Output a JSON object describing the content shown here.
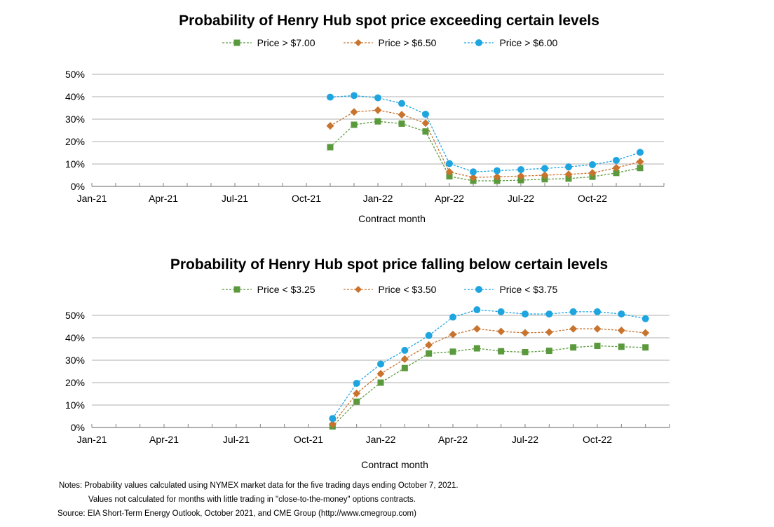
{
  "chart_data": [
    {
      "type": "line",
      "title": "Probability of Henry Hub spot price exceeding certain levels",
      "xlabel": "Contract month",
      "ylabel": "",
      "x_tick_labels": [
        "Jan-21",
        "Apr-21",
        "Jul-21",
        "Oct-21",
        "Jan-22",
        "Apr-22",
        "Jul-22",
        "Oct-22"
      ],
      "y_tick_labels": [
        "0%",
        "10%",
        "20%",
        "30%",
        "40%",
        "50%"
      ],
      "ylim": [
        0,
        50
      ],
      "grid": true,
      "legend_position": "top",
      "x": [
        "Nov-21",
        "Dec-21",
        "Jan-22",
        "Feb-22",
        "Mar-22",
        "Apr-22",
        "May-22",
        "Jun-22",
        "Jul-22",
        "Aug-22",
        "Sep-22",
        "Oct-22",
        "Nov-22",
        "Dec-22"
      ],
      "series": [
        {
          "name": "Price > $7.00",
          "color": "#5a9a3c",
          "marker": "square",
          "values": [
            17.5,
            27.5,
            29,
            28,
            24.5,
            4.5,
            2.5,
            2.5,
            2.8,
            3.2,
            3.5,
            4.3,
            6,
            8.2
          ]
        },
        {
          "name": "Price > $6.50",
          "color": "#c8732e",
          "marker": "diamond",
          "values": [
            27,
            33.2,
            34,
            32,
            28.2,
            6.5,
            4,
            4.3,
            4.6,
            5,
            5.4,
            6,
            8.3,
            11
          ]
        },
        {
          "name": "Price > $6.00",
          "color": "#1ea5e0",
          "marker": "circle",
          "values": [
            39.8,
            40.5,
            39.5,
            37,
            32.2,
            10.2,
            6.5,
            7,
            7.5,
            8,
            8.7,
            9.7,
            11.6,
            15.2
          ]
        }
      ]
    },
    {
      "type": "line",
      "title": "Probability of Henry Hub spot price falling below certain levels",
      "xlabel": "Contract month",
      "ylabel": "",
      "x_tick_labels": [
        "Jan-21",
        "Apr-21",
        "Jul-21",
        "Oct-21",
        "Jan-22",
        "Apr-22",
        "Jul-22",
        "Oct-22"
      ],
      "y_tick_labels": [
        "0%",
        "10%",
        "20%",
        "30%",
        "40%",
        "50%"
      ],
      "ylim": [
        0,
        50
      ],
      "grid": true,
      "legend_position": "top",
      "x": [
        "Nov-21",
        "Dec-21",
        "Jan-22",
        "Feb-22",
        "Mar-22",
        "Apr-22",
        "May-22",
        "Jun-22",
        "Jul-22",
        "Aug-22",
        "Sep-22",
        "Oct-22",
        "Nov-22",
        "Dec-22"
      ],
      "series": [
        {
          "name": "Price < $3.25",
          "color": "#5a9a3c",
          "marker": "square",
          "values": [
            0.5,
            11.5,
            20,
            26.5,
            33,
            33.8,
            35.3,
            34,
            33.6,
            34.2,
            35.7,
            36.4,
            36,
            35.7
          ]
        },
        {
          "name": "Price < $3.50",
          "color": "#c8732e",
          "marker": "diamond",
          "values": [
            1.5,
            15.2,
            24,
            30.5,
            36.8,
            41.5,
            44,
            42.8,
            42.2,
            42.5,
            44,
            44,
            43.3,
            42.2
          ]
        },
        {
          "name": "Price < $3.75",
          "color": "#1ea5e0",
          "marker": "circle",
          "values": [
            4,
            19.7,
            28.3,
            34.4,
            41,
            49.2,
            52.5,
            51.6,
            50.6,
            50.6,
            51.6,
            51.6,
            50.6,
            48.5
          ]
        }
      ]
    }
  ],
  "notes": {
    "line1": "Notes: Probability values calculated using NYMEX market data for the five trading days ending October 7, 2021.",
    "line2": "Values not calculated for months with little trading in \"close-to-the-money\" options contracts.",
    "source": "Source:  EIA Short-Term Energy Outlook, October 2021, and CME  Group (http://www.cmegroup.com)"
  }
}
